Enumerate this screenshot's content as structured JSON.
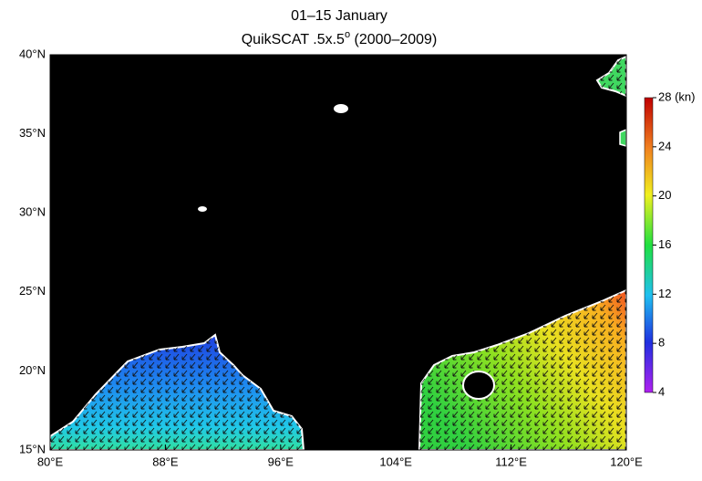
{
  "title": "01–15 January",
  "subtitle": {
    "main": "QuikSCAT .5x.5",
    "sup": "o",
    "tail": " (2000–2009)"
  },
  "map": {
    "xlim": [
      80,
      120
    ],
    "ylim": [
      15,
      40
    ],
    "xticks": [
      {
        "value": 80,
        "label": "80°E"
      },
      {
        "value": 88,
        "label": "88°E"
      },
      {
        "value": 96,
        "label": "96°E"
      },
      {
        "value": 104,
        "label": "104°E"
      },
      {
        "value": 112,
        "label": "112°E"
      },
      {
        "value": 120,
        "label": "120°E"
      }
    ],
    "yticks": [
      {
        "value": 15,
        "label": "15°N"
      },
      {
        "value": 20,
        "label": "20°N"
      },
      {
        "value": 25,
        "label": "25°N"
      },
      {
        "value": 30,
        "label": "30°N"
      },
      {
        "value": 35,
        "label": "35°N"
      },
      {
        "value": 40,
        "label": "40°N"
      }
    ]
  },
  "colorbar": {
    "lim": [
      4,
      28
    ],
    "ticks": [
      4,
      8,
      12,
      16,
      20,
      24,
      {
        "value": 28,
        "label": "28 (kn)"
      }
    ]
  }
}
